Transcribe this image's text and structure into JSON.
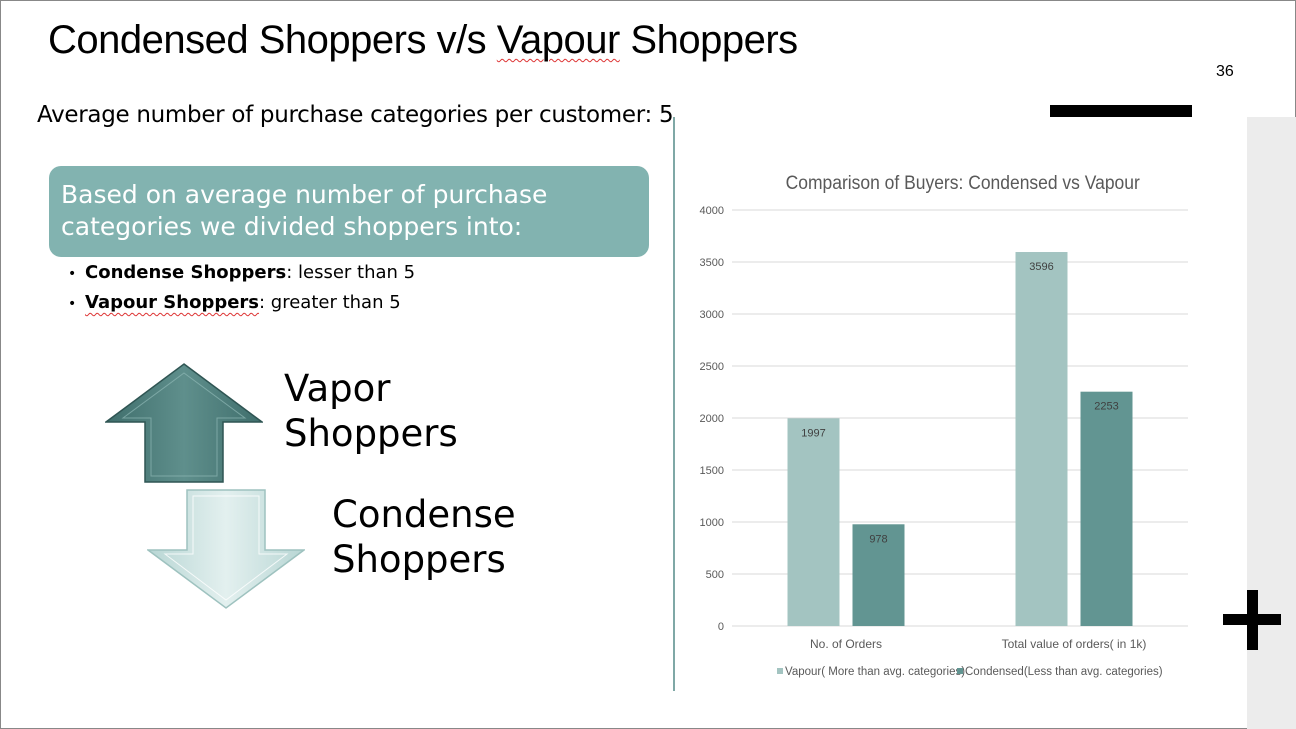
{
  "slide": {
    "title_part1": "Condensed Shoppers v/s ",
    "title_part2": "Vapour",
    "title_part3": " Shoppers",
    "page_number": "36",
    "avg_line": "Average number of purchase categories per customer: 5",
    "callout_text": "Based on average number of purchase categories we divided shoppers into:",
    "bullets": [
      {
        "bold": "Condense Shoppers",
        "rest": ": lesser than 5"
      },
      {
        "bold": "Vapour Shoppers",
        "rest": ": greater than 5"
      }
    ],
    "arrow_up_label_line1": "Vapor",
    "arrow_up_label_line2": "Shoppers",
    "arrow_down_label_line1": "Condense",
    "arrow_down_label_line2": "Shoppers"
  },
  "colors": {
    "callout_bg": "#82b3b0",
    "vapour_series": "#a3c4c1",
    "condensed_series": "#629592",
    "divider": "#7fa8a6"
  },
  "chart_data": {
    "type": "bar",
    "title": "Comparison of Buyers: Condensed vs Vapour",
    "categories": [
      "No. of Orders",
      "Total value of orders( in 1k)"
    ],
    "series": [
      {
        "name": "Vapour( More than avg. categories)",
        "values": [
          1997,
          3596
        ],
        "color": "#a3c4c1"
      },
      {
        "name": "Condensed(Less than avg. categories)",
        "values": [
          978,
          2253
        ],
        "color": "#629592"
      }
    ],
    "yticks": [
      0,
      500,
      1000,
      1500,
      2000,
      2500,
      3000,
      3500,
      4000
    ],
    "ylim": [
      0,
      4000
    ],
    "grid": true,
    "legend": "bottom"
  }
}
